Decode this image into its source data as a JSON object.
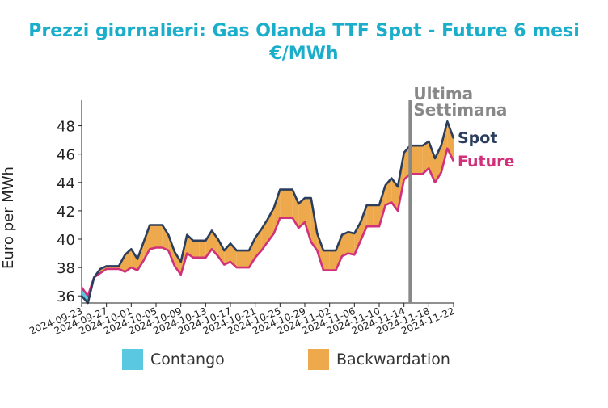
{
  "chart_data": {
    "type": "area",
    "title": "Prezzi giornalieri: Gas Olanda TTF Spot - Future 6 mesi",
    "subtitle": "€/MWh",
    "xlabel": "",
    "ylabel": "Euro per MWh",
    "ylim": [
      35.5,
      49.8
    ],
    "yticks": [
      36,
      38,
      40,
      42,
      44,
      46,
      48
    ],
    "xticks": [
      "2024-09-23",
      "2024-09-27",
      "2024-10-01",
      "2024-10-05",
      "2024-10-09",
      "2024-10-13",
      "2024-10-17",
      "2024-10-21",
      "2024-10-25",
      "2024-10-29",
      "2024-11-02",
      "2024-11-06",
      "2024-11-10",
      "2024-11-14",
      "2024-11-18",
      "2024-11-22"
    ],
    "x": [
      "2024-09-23",
      "2024-09-24",
      "2024-09-25",
      "2024-09-26",
      "2024-09-27",
      "2024-09-28",
      "2024-09-29",
      "2024-09-30",
      "2024-10-01",
      "2024-10-02",
      "2024-10-03",
      "2024-10-04",
      "2024-10-05",
      "2024-10-06",
      "2024-10-07",
      "2024-10-08",
      "2024-10-09",
      "2024-10-10",
      "2024-10-11",
      "2024-10-12",
      "2024-10-13",
      "2024-10-14",
      "2024-10-15",
      "2024-10-16",
      "2024-10-17",
      "2024-10-18",
      "2024-10-19",
      "2024-10-20",
      "2024-10-21",
      "2024-10-22",
      "2024-10-23",
      "2024-10-24",
      "2024-10-25",
      "2024-10-26",
      "2024-10-27",
      "2024-10-28",
      "2024-10-29",
      "2024-10-30",
      "2024-10-31",
      "2024-11-01",
      "2024-11-02",
      "2024-11-03",
      "2024-11-04",
      "2024-11-05",
      "2024-11-06",
      "2024-11-07",
      "2024-11-08",
      "2024-11-09",
      "2024-11-10",
      "2024-11-11",
      "2024-11-12",
      "2024-11-13",
      "2024-11-14",
      "2024-11-15",
      "2024-11-16",
      "2024-11-17",
      "2024-11-18",
      "2024-11-19",
      "2024-11-20",
      "2024-11-21",
      "2024-11-22"
    ],
    "series": [
      {
        "name": "Spot",
        "color": "#2b3e5c",
        "values": [
          36.0,
          35.5,
          37.3,
          37.9,
          38.1,
          38.1,
          38.1,
          38.9,
          39.3,
          38.6,
          39.8,
          41.0,
          41.0,
          41.0,
          40.3,
          39.1,
          38.4,
          40.3,
          39.9,
          39.9,
          39.9,
          40.6,
          40.0,
          39.2,
          39.7,
          39.2,
          39.2,
          39.2,
          40.1,
          40.7,
          41.4,
          42.2,
          43.5,
          43.5,
          43.5,
          42.5,
          42.9,
          42.9,
          40.4,
          39.2,
          39.2,
          39.2,
          40.3,
          40.5,
          40.4,
          41.2,
          42.4,
          42.4,
          42.4,
          43.8,
          44.3,
          43.7,
          46.1,
          46.6,
          46.6,
          46.6,
          46.9,
          45.7,
          46.6,
          48.3,
          47.1
        ]
      },
      {
        "name": "Future",
        "color": "#d1307a",
        "values": [
          36.6,
          36.0,
          37.3,
          37.6,
          37.9,
          37.9,
          37.9,
          37.7,
          38.0,
          37.8,
          38.5,
          39.3,
          39.4,
          39.4,
          39.2,
          38.1,
          37.5,
          39.0,
          38.7,
          38.7,
          38.7,
          39.3,
          38.8,
          38.2,
          38.4,
          38.0,
          38.0,
          38.0,
          38.7,
          39.2,
          39.8,
          40.4,
          41.5,
          41.5,
          41.5,
          40.8,
          41.2,
          39.8,
          39.2,
          37.8,
          37.8,
          37.8,
          38.8,
          39.0,
          38.9,
          39.9,
          40.9,
          40.9,
          40.9,
          42.4,
          42.6,
          42.0,
          44.2,
          44.6,
          44.6,
          44.6,
          45.0,
          44.0,
          44.7,
          46.4,
          45.5
        ]
      }
    ],
    "fills": {
      "contango": "#5bc8e2",
      "backwardation": "#eda94b"
    },
    "legend": [
      "Contango",
      "Backwardation"
    ],
    "legend_position": "bottom",
    "annotation": {
      "label": "Ultima Settimana",
      "x": "2024-11-15",
      "color": "#888888"
    },
    "grid": false
  }
}
